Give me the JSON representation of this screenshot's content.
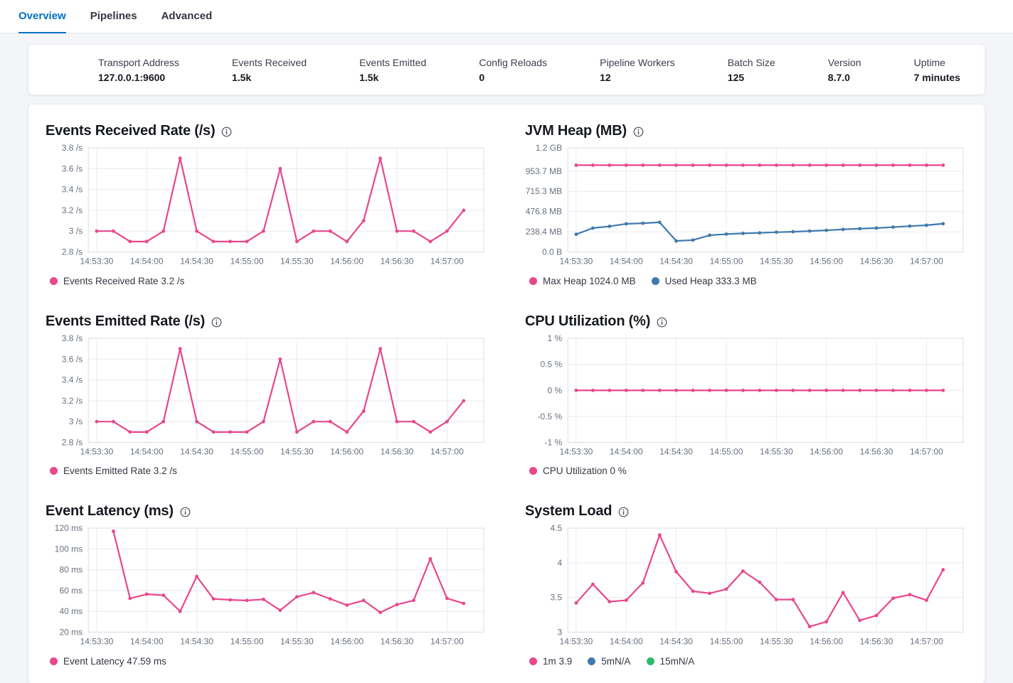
{
  "tabs": [
    {
      "label": "Overview",
      "active": true
    },
    {
      "label": "Pipelines",
      "active": false
    },
    {
      "label": "Advanced",
      "active": false
    }
  ],
  "stats": [
    {
      "label": "Transport Address",
      "value": "127.0.0.1:9600"
    },
    {
      "label": "Events Received",
      "value": "1.5k"
    },
    {
      "label": "Events Emitted",
      "value": "1.5k"
    },
    {
      "label": "Config Reloads",
      "value": "0"
    },
    {
      "label": "Pipeline Workers",
      "value": "12"
    },
    {
      "label": "Batch Size",
      "value": "125"
    },
    {
      "label": "Version",
      "value": "8.7.0"
    },
    {
      "label": "Uptime",
      "value": "7 minutes"
    }
  ],
  "colors": {
    "accent_pink": "#E8478D",
    "accent_blue": "#4179AD",
    "accent_green": "#2CB96C",
    "tab_active": "#0071C2"
  },
  "chart_data": [
    {
      "type": "line",
      "title": "Events Received Rate (/s)",
      "x": [
        "14:53:30",
        "14:53:40",
        "14:53:50",
        "14:54:00",
        "14:54:10",
        "14:54:20",
        "14:54:30",
        "14:54:40",
        "14:54:50",
        "14:55:00",
        "14:55:10",
        "14:55:20",
        "14:55:30",
        "14:55:40",
        "14:55:50",
        "14:56:00",
        "14:56:10",
        "14:56:20",
        "14:56:30",
        "14:56:40",
        "14:56:50",
        "14:57:00",
        "14:57:10"
      ],
      "x_tick_labels": [
        "14:53:30",
        "14:54:00",
        "14:54:30",
        "14:55:00",
        "14:55:30",
        "14:56:00",
        "14:56:30",
        "14:57:00"
      ],
      "ylim": [
        2.8,
        3.8
      ],
      "y_tick_values": [
        2.8,
        3.0,
        3.2,
        3.4,
        3.6,
        3.8
      ],
      "y_tick_labels": [
        "2.8 /s",
        "3 /s",
        "3.2 /s",
        "3.4 /s",
        "3.6 /s",
        "3.8 /s"
      ],
      "series": [
        {
          "name": "Events Received Rate",
          "color": "#E8478D",
          "values": [
            3.0,
            3.0,
            2.9,
            2.9,
            3.0,
            3.7,
            3.0,
            2.9,
            2.9,
            2.9,
            3.0,
            3.6,
            2.9,
            3.0,
            3.0,
            2.9,
            3.1,
            3.7,
            3.0,
            3.0,
            2.9,
            3.0,
            3.2
          ]
        }
      ],
      "legend": [
        {
          "text": "Events Received Rate 3.2 /s",
          "color": "#E8478D"
        }
      ]
    },
    {
      "type": "line",
      "title": "JVM Heap (MB)",
      "x": [
        "14:53:30",
        "14:53:40",
        "14:53:50",
        "14:54:00",
        "14:54:10",
        "14:54:20",
        "14:54:30",
        "14:54:40",
        "14:54:50",
        "14:55:00",
        "14:55:10",
        "14:55:20",
        "14:55:30",
        "14:55:40",
        "14:55:50",
        "14:56:00",
        "14:56:10",
        "14:56:20",
        "14:56:30",
        "14:56:40",
        "14:56:50",
        "14:57:00",
        "14:57:10"
      ],
      "x_tick_labels": [
        "14:53:30",
        "14:54:00",
        "14:54:30",
        "14:55:00",
        "14:55:30",
        "14:56:00",
        "14:56:30",
        "14:57:00"
      ],
      "ylim": [
        0,
        1228.8
      ],
      "y_tick_values": [
        0,
        238.4,
        476.8,
        715.3,
        953.7,
        1228.8
      ],
      "y_tick_labels": [
        "0.0 B",
        "238.4 MB",
        "476.8 MB",
        "715.3 MB",
        "953.7 MB",
        "1.2 GB"
      ],
      "series": [
        {
          "name": "Max Heap",
          "color": "#E8478D",
          "values": [
            1024,
            1024,
            1024,
            1024,
            1024,
            1024,
            1024,
            1024,
            1024,
            1024,
            1024,
            1024,
            1024,
            1024,
            1024,
            1024,
            1024,
            1024,
            1024,
            1024,
            1024,
            1024,
            1024
          ]
        },
        {
          "name": "Used Heap",
          "color": "#4179AD",
          "values": [
            208,
            282,
            302,
            332,
            338,
            350,
            130,
            140,
            197,
            210,
            219,
            225,
            233,
            238,
            247,
            255,
            266,
            274,
            282,
            293,
            305,
            316,
            333.3
          ]
        }
      ],
      "legend": [
        {
          "text": "Max Heap 1024.0 MB",
          "color": "#E8478D"
        },
        {
          "text": "Used Heap 333.3 MB",
          "color": "#4179AD"
        }
      ]
    },
    {
      "type": "line",
      "title": "Events Emitted Rate (/s)",
      "x": [
        "14:53:30",
        "14:53:40",
        "14:53:50",
        "14:54:00",
        "14:54:10",
        "14:54:20",
        "14:54:30",
        "14:54:40",
        "14:54:50",
        "14:55:00",
        "14:55:10",
        "14:55:20",
        "14:55:30",
        "14:55:40",
        "14:55:50",
        "14:56:00",
        "14:56:10",
        "14:56:20",
        "14:56:30",
        "14:56:40",
        "14:56:50",
        "14:57:00",
        "14:57:10"
      ],
      "x_tick_labels": [
        "14:53:30",
        "14:54:00",
        "14:54:30",
        "14:55:00",
        "14:55:30",
        "14:56:00",
        "14:56:30",
        "14:57:00"
      ],
      "ylim": [
        2.8,
        3.8
      ],
      "y_tick_values": [
        2.8,
        3.0,
        3.2,
        3.4,
        3.6,
        3.8
      ],
      "y_tick_labels": [
        "2.8 /s",
        "3 /s",
        "3.2 /s",
        "3.4 /s",
        "3.6 /s",
        "3.8 /s"
      ],
      "series": [
        {
          "name": "Events Emitted Rate",
          "color": "#E8478D",
          "values": [
            3.0,
            3.0,
            2.9,
            2.9,
            3.0,
            3.7,
            3.0,
            2.9,
            2.9,
            2.9,
            3.0,
            3.6,
            2.9,
            3.0,
            3.0,
            2.9,
            3.1,
            3.7,
            3.0,
            3.0,
            2.9,
            3.0,
            3.2
          ]
        }
      ],
      "legend": [
        {
          "text": "Events Emitted Rate 3.2 /s",
          "color": "#E8478D"
        }
      ]
    },
    {
      "type": "line",
      "title": "CPU Utilization (%)",
      "x": [
        "14:53:30",
        "14:53:40",
        "14:53:50",
        "14:54:00",
        "14:54:10",
        "14:54:20",
        "14:54:30",
        "14:54:40",
        "14:54:50",
        "14:55:00",
        "14:55:10",
        "14:55:20",
        "14:55:30",
        "14:55:40",
        "14:55:50",
        "14:56:00",
        "14:56:10",
        "14:56:20",
        "14:56:30",
        "14:56:40",
        "14:56:50",
        "14:57:00",
        "14:57:10"
      ],
      "x_tick_labels": [
        "14:53:30",
        "14:54:00",
        "14:54:30",
        "14:55:00",
        "14:55:30",
        "14:56:00",
        "14:56:30",
        "14:57:00"
      ],
      "ylim": [
        -1,
        1
      ],
      "y_tick_values": [
        -1,
        -0.5,
        0,
        0.5,
        1
      ],
      "y_tick_labels": [
        "-1 %",
        "-0.5 %",
        "0 %",
        "0.5 %",
        "1 %"
      ],
      "series": [
        {
          "name": "CPU Utilization",
          "color": "#E8478D",
          "values": [
            0,
            0,
            0,
            0,
            0,
            0,
            0,
            0,
            0,
            0,
            0,
            0,
            0,
            0,
            0,
            0,
            0,
            0,
            0,
            0,
            0,
            0,
            0
          ]
        }
      ],
      "legend": [
        {
          "text": "CPU Utilization 0 %",
          "color": "#E8478D"
        }
      ]
    },
    {
      "type": "line",
      "title": "Event Latency (ms)",
      "x": [
        "14:53:40",
        "14:53:50",
        "14:54:00",
        "14:54:10",
        "14:54:20",
        "14:54:30",
        "14:54:40",
        "14:54:50",
        "14:55:00",
        "14:55:10",
        "14:55:20",
        "14:55:30",
        "14:55:40",
        "14:55:50",
        "14:56:00",
        "14:56:10",
        "14:56:20",
        "14:56:30",
        "14:56:40",
        "14:56:50",
        "14:57:00",
        "14:57:10"
      ],
      "x_tick_labels": [
        "14:53:30",
        "14:54:00",
        "14:54:30",
        "14:55:00",
        "14:55:30",
        "14:56:00",
        "14:56:30",
        "14:57:00"
      ],
      "ylim": [
        20,
        120
      ],
      "y_tick_values": [
        20,
        40,
        60,
        80,
        100,
        120
      ],
      "y_tick_labels": [
        "20 ms",
        "40 ms",
        "60 ms",
        "80 ms",
        "100 ms",
        "120 ms"
      ],
      "series": [
        {
          "name": "Event Latency",
          "color": "#E8478D",
          "values": [
            117,
            52.5,
            56.5,
            55.5,
            40,
            73.5,
            52,
            51,
            50.5,
            51.5,
            41,
            54,
            58,
            52,
            46,
            50.5,
            39,
            46.5,
            50.5,
            90.5,
            52.5,
            47.59
          ]
        }
      ],
      "legend": [
        {
          "text": "Event Latency 47.59 ms",
          "color": "#E8478D"
        }
      ]
    },
    {
      "type": "line",
      "title": "System Load",
      "x": [
        "14:53:30",
        "14:53:40",
        "14:53:50",
        "14:54:00",
        "14:54:10",
        "14:54:20",
        "14:54:30",
        "14:54:40",
        "14:54:50",
        "14:55:00",
        "14:55:10",
        "14:55:20",
        "14:55:30",
        "14:55:40",
        "14:55:50",
        "14:56:00",
        "14:56:10",
        "14:56:20",
        "14:56:30",
        "14:56:40",
        "14:56:50",
        "14:57:00",
        "14:57:10"
      ],
      "x_tick_labels": [
        "14:53:30",
        "14:54:00",
        "14:54:30",
        "14:55:00",
        "14:55:30",
        "14:56:00",
        "14:56:30",
        "14:57:00"
      ],
      "ylim": [
        3,
        4.5
      ],
      "y_tick_values": [
        3,
        3.5,
        4,
        4.5
      ],
      "y_tick_labels": [
        "3",
        "3.5",
        "4",
        "4.5"
      ],
      "series": [
        {
          "name": "1m",
          "color": "#E8478D",
          "values": [
            3.42,
            3.69,
            3.44,
            3.46,
            3.71,
            4.4,
            3.87,
            3.59,
            3.56,
            3.62,
            3.88,
            3.72,
            3.47,
            3.47,
            3.08,
            3.15,
            3.57,
            3.17,
            3.24,
            3.49,
            3.54,
            3.46,
            3.9
          ]
        }
      ],
      "legend": [
        {
          "text": "1m 3.9",
          "color": "#E8478D"
        },
        {
          "text": "5mN/A",
          "color": "#4179AD"
        },
        {
          "text": "15mN/A",
          "color": "#2CB96C"
        }
      ]
    }
  ]
}
